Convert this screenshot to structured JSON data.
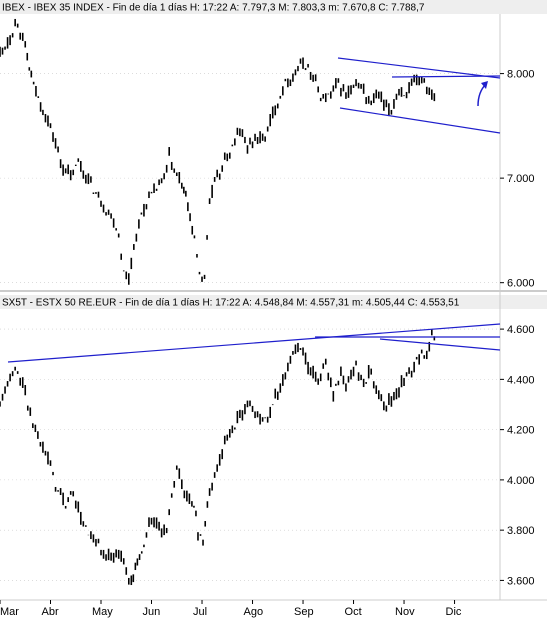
{
  "colors": {
    "background": "#ffffff",
    "price_bars": "#000000",
    "trendline": "#1f1fcc",
    "arrow": "#1f1fcc",
    "panel_header_bg": "#eeeeee",
    "separator": "#999999",
    "gridline": "#c8c8c8"
  },
  "x_axis": {
    "months": [
      "Mar",
      "Abr",
      "May",
      "Jun",
      "Jul",
      "Ago",
      "Sep",
      "Oct",
      "Nov",
      "Dic"
    ],
    "xlim": [
      0,
      9.9
    ]
  },
  "chart_data": [
    {
      "type": "line",
      "subtype": "ohlc",
      "title": "IBEX - IBEX 35 INDEX - Fin de día 1 días H: 17:22  A: 7.797,3  M: 7.803,3  m: 7.670,8  C: 7.788,7",
      "y_ticks": [
        "8.000",
        "7.000",
        "6.000"
      ],
      "y_tick_values": [
        8000,
        7000,
        6000
      ],
      "ylim": [
        5930,
        8570
      ],
      "grid": true,
      "series": [
        {
          "values": [
            [
              0.0,
              8200
            ],
            [
              0.2,
              8350
            ],
            [
              0.35,
              8500
            ],
            [
              0.5,
              8250
            ],
            [
              0.62,
              7950
            ],
            [
              0.85,
              7650
            ],
            [
              1.05,
              7420
            ],
            [
              1.2,
              7150
            ],
            [
              1.4,
              7000
            ],
            [
              1.55,
              7150
            ],
            [
              1.75,
              6980
            ],
            [
              1.9,
              6850
            ],
            [
              2.1,
              6700
            ],
            [
              2.25,
              6600
            ],
            [
              2.35,
              6450
            ],
            [
              2.45,
              6100
            ],
            [
              2.55,
              6050
            ],
            [
              2.65,
              6350
            ],
            [
              2.8,
              6650
            ],
            [
              2.95,
              6800
            ],
            [
              3.1,
              6900
            ],
            [
              3.25,
              7000
            ],
            [
              3.35,
              7200
            ],
            [
              3.45,
              7050
            ],
            [
              3.6,
              6950
            ],
            [
              3.72,
              6750
            ],
            [
              3.85,
              6400
            ],
            [
              3.95,
              6100
            ],
            [
              4.05,
              6050
            ],
            [
              4.15,
              6800
            ],
            [
              4.3,
              7000
            ],
            [
              4.45,
              7150
            ],
            [
              4.6,
              7300
            ],
            [
              4.75,
              7450
            ],
            [
              4.9,
              7300
            ],
            [
              5.05,
              7400
            ],
            [
              5.2,
              7350
            ],
            [
              5.4,
              7600
            ],
            [
              5.55,
              7800
            ],
            [
              5.7,
              7950
            ],
            [
              5.85,
              8000
            ],
            [
              6.0,
              8100
            ],
            [
              6.1,
              8050
            ],
            [
              6.25,
              7900
            ],
            [
              6.4,
              7750
            ],
            [
              6.55,
              7800
            ],
            [
              6.7,
              7900
            ],
            [
              6.85,
              7800
            ],
            [
              7.0,
              7850
            ],
            [
              7.15,
              7900
            ],
            [
              7.3,
              7700
            ],
            [
              7.45,
              7800
            ],
            [
              7.6,
              7700
            ],
            [
              7.75,
              7650
            ],
            [
              7.9,
              7850
            ],
            [
              8.05,
              7800
            ],
            [
              8.2,
              7900
            ],
            [
              8.35,
              7950
            ],
            [
              8.5,
              7850
            ],
            [
              8.65,
              7789
            ]
          ]
        }
      ]
    },
    {
      "type": "line",
      "subtype": "ohlc",
      "title": "SX5T - ESTX 50 RE.EUR - Fin de día 1 días H: 17:22  A: 4.548,84  M: 4.557,31  m: 4.505,44  C: 4.553,51",
      "y_ticks": [
        "4.600",
        "4.400",
        "4.200",
        "4.000",
        "3.800",
        "3.600"
      ],
      "y_tick_values": [
        4600,
        4400,
        4200,
        4000,
        3800,
        3600
      ],
      "ylim": [
        3530,
        4680
      ],
      "grid": true,
      "series": [
        {
          "values": [
            [
              0.0,
              4290
            ],
            [
              0.15,
              4380
            ],
            [
              0.3,
              4440
            ],
            [
              0.45,
              4380
            ],
            [
              0.55,
              4300
            ],
            [
              0.7,
              4200
            ],
            [
              0.85,
              4150
            ],
            [
              1.0,
              4050
            ],
            [
              1.15,
              3950
            ],
            [
              1.3,
              3900
            ],
            [
              1.45,
              3950
            ],
            [
              1.6,
              3850
            ],
            [
              1.75,
              3780
            ],
            [
              1.9,
              3750
            ],
            [
              2.05,
              3700
            ],
            [
              2.2,
              3680
            ],
            [
              2.35,
              3720
            ],
            [
              2.5,
              3640
            ],
            [
              2.6,
              3590
            ],
            [
              2.72,
              3660
            ],
            [
              2.85,
              3740
            ],
            [
              3.0,
              3850
            ],
            [
              3.15,
              3800
            ],
            [
              3.3,
              3780
            ],
            [
              3.4,
              3950
            ],
            [
              3.5,
              4050
            ],
            [
              3.65,
              3950
            ],
            [
              3.8,
              3920
            ],
            [
              3.92,
              3800
            ],
            [
              4.02,
              3760
            ],
            [
              4.15,
              3950
            ],
            [
              4.3,
              4050
            ],
            [
              4.45,
              4150
            ],
            [
              4.6,
              4200
            ],
            [
              4.75,
              4250
            ],
            [
              4.9,
              4300
            ],
            [
              5.05,
              4280
            ],
            [
              5.15,
              4250
            ],
            [
              5.25,
              4230
            ],
            [
              5.4,
              4300
            ],
            [
              5.55,
              4380
            ],
            [
              5.7,
              4450
            ],
            [
              5.85,
              4520
            ],
            [
              6.0,
              4500
            ],
            [
              6.15,
              4420
            ],
            [
              6.3,
              4400
            ],
            [
              6.45,
              4450
            ],
            [
              6.6,
              4350
            ],
            [
              6.75,
              4420
            ],
            [
              6.9,
              4380
            ],
            [
              7.05,
              4450
            ],
            [
              7.2,
              4380
            ],
            [
              7.35,
              4430
            ],
            [
              7.5,
              4350
            ],
            [
              7.65,
              4300
            ],
            [
              7.8,
              4330
            ],
            [
              7.95,
              4380
            ],
            [
              8.1,
              4420
            ],
            [
              8.25,
              4480
            ],
            [
              8.4,
              4500
            ],
            [
              8.55,
              4560
            ],
            [
              8.65,
              4554
            ]
          ]
        }
      ]
    }
  ]
}
